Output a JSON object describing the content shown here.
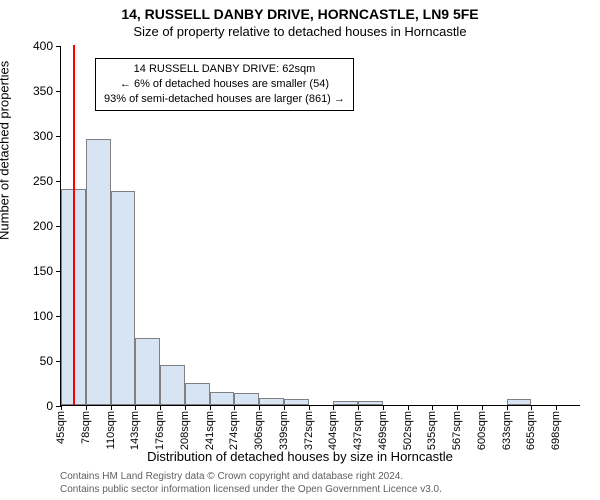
{
  "chart": {
    "type": "histogram",
    "title": "14, RUSSELL DANBY DRIVE, HORNCASTLE, LN9 5FE",
    "subtitle": "Size of property relative to detached houses in Horncastle",
    "ylabel": "Number of detached properties",
    "xlabel": "Distribution of detached houses by size in Horncastle",
    "attribution_line1": "Contains HM Land Registry data © Crown copyright and database right 2024.",
    "attribution_line2": "Contains public sector information licensed under the Open Government Licence v3.0.",
    "ylim": [
      0,
      400
    ],
    "ytick_step": 50,
    "background_color": "#ffffff",
    "bar_fill": "#d7e4f4",
    "bar_border": "#808080",
    "refline_color": "#ff0000",
    "refline_x": 62,
    "annotation": {
      "line1": "14 RUSSELL DANBY DRIVE: 62sqm",
      "line2": "← 6% of detached houses are smaller (54)",
      "line3": "93% of semi-detached houses are larger (861) →"
    },
    "x_categories": [
      "45sqm",
      "78sqm",
      "110sqm",
      "143sqm",
      "176sqm",
      "208sqm",
      "241sqm",
      "274sqm",
      "306sqm",
      "339sqm",
      "372sqm",
      "404sqm",
      "437sqm",
      "469sqm",
      "502sqm",
      "535sqm",
      "567sqm",
      "600sqm",
      "633sqm",
      "665sqm",
      "698sqm"
    ],
    "x_bin_start": 45,
    "x_bin_width": 33,
    "values": [
      240,
      296,
      238,
      74,
      44,
      25,
      14,
      13,
      8,
      7,
      0,
      4,
      5,
      0,
      0,
      0,
      0,
      0,
      7,
      0,
      0
    ],
    "title_fontsize": 14,
    "subtitle_fontsize": 13,
    "label_fontsize": 13,
    "tick_fontsize": 11
  }
}
